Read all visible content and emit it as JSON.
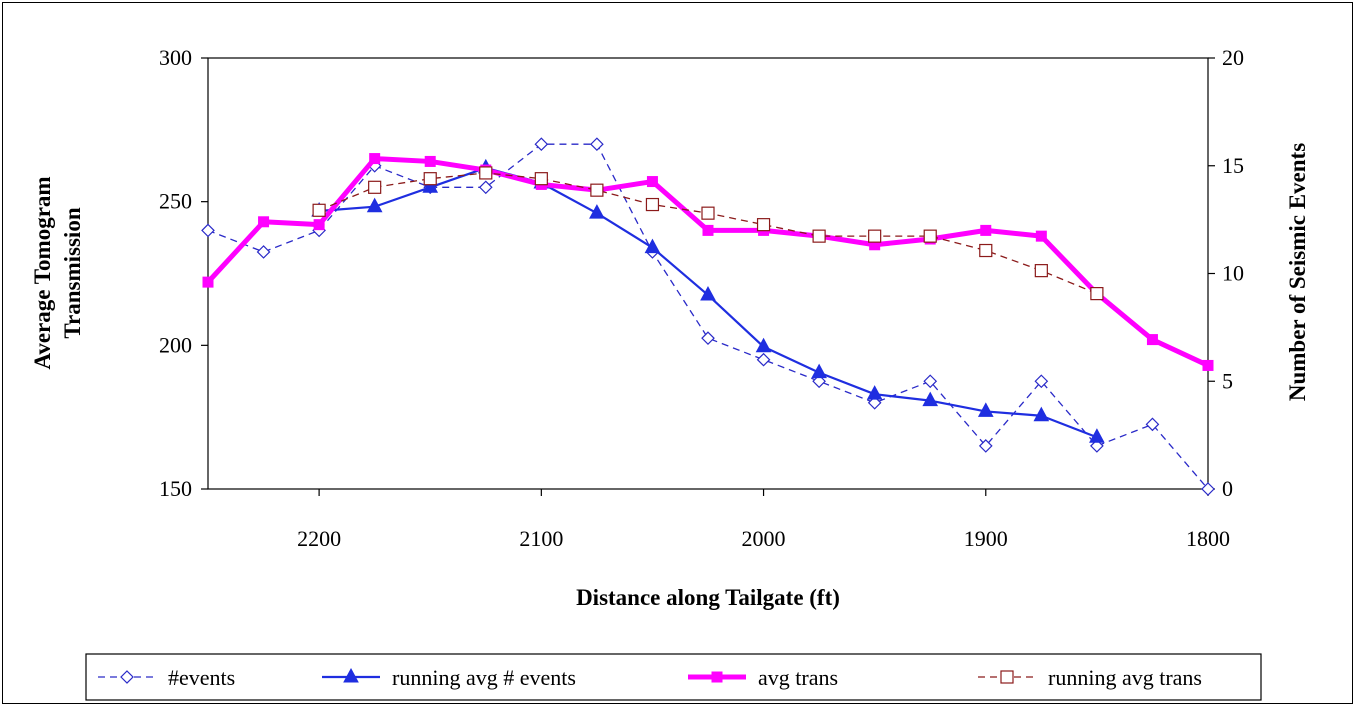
{
  "chart_data": {
    "type": "line",
    "xlabel": "Distance along Tailgate (ft)",
    "ylabel_left": "Average Tomogram Transmission",
    "ylabel_right": "Number of Seismic Events",
    "x_reversed": true,
    "xlim": [
      2250,
      1800
    ],
    "x_ticks": [
      2200,
      2100,
      2000,
      1900,
      1800
    ],
    "ylim_left": [
      150,
      300
    ],
    "y_ticks_left": [
      150,
      200,
      250,
      300
    ],
    "ylim_right": [
      0,
      20
    ],
    "y_ticks_right": [
      0,
      5,
      10,
      15,
      20
    ],
    "grid": false,
    "legend_position": "bottom",
    "series": [
      {
        "name": "#events",
        "axis": "right",
        "color": "#2a2ac8",
        "line_style": "dashed",
        "marker": "open-diamond",
        "x": [
          2250,
          2225,
          2200,
          2175,
          2150,
          2125,
          2100,
          2075,
          2050,
          2025,
          2000,
          1975,
          1950,
          1925,
          1900,
          1875,
          1850,
          1825,
          1800
        ],
        "values": [
          12,
          11,
          12,
          15,
          14,
          14,
          16,
          16,
          11,
          7,
          6,
          5,
          4,
          5,
          2,
          5,
          2,
          3,
          0
        ]
      },
      {
        "name": "running avg # events",
        "axis": "right",
        "color": "#1f2ee0",
        "line_style": "solid",
        "marker": "filled-triangle",
        "x": [
          2200,
          2175,
          2150,
          2125,
          2100,
          2075,
          2050,
          2025,
          2000,
          1975,
          1950,
          1925,
          1900,
          1875,
          1850
        ],
        "values": [
          12.9,
          13.1,
          14.0,
          14.9,
          14.2,
          12.8,
          11.2,
          9.0,
          6.6,
          5.4,
          4.4,
          4.1,
          3.6,
          3.4,
          2.4
        ]
      },
      {
        "name": "avg trans",
        "axis": "left",
        "color": "#ff00ff",
        "line_style": "solid",
        "marker": "filled-square",
        "x": [
          2250,
          2225,
          2200,
          2175,
          2150,
          2125,
          2100,
          2075,
          2050,
          2025,
          2000,
          1975,
          1950,
          1925,
          1900,
          1875,
          1850,
          1825,
          1800
        ],
        "values": [
          222,
          243,
          242,
          265,
          264,
          261,
          256,
          254,
          257,
          240,
          240,
          238,
          235,
          237,
          240,
          238,
          218,
          202,
          193
        ]
      },
      {
        "name": "running avg trans",
        "axis": "left",
        "color": "#8b1a1a",
        "line_style": "dashed",
        "marker": "open-square",
        "x": [
          2200,
          2175,
          2150,
          2125,
          2100,
          2075,
          2050,
          2025,
          2000,
          1975,
          1950,
          1925,
          1900,
          1875,
          1850
        ],
        "values": [
          247,
          255,
          258,
          260,
          258,
          254,
          249,
          246,
          242,
          238,
          238,
          238,
          233,
          226,
          218
        ]
      }
    ]
  }
}
